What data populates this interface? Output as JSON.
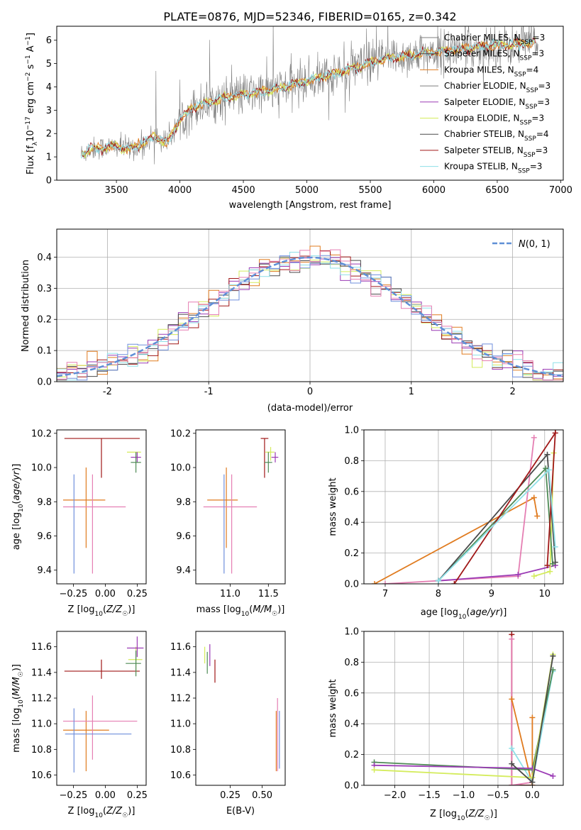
{
  "title": "PLATE=0876, MJD=52346, FIBERID=0165, z=0.342",
  "colors": {
    "chabrier_miles": "#7f7f7f",
    "salpeter_miles": "#4d4d4d",
    "kroupa_miles": "#e07b1f",
    "chabrier_elodie": "#7f7f7f",
    "salpeter_elodie": "#9b3bb5",
    "kroupa_elodie": "#d4ec5c",
    "chabrier_stelib": "#4a4a4a",
    "salpeter_stelib": "#a01818",
    "kroupa_stelib": "#8ee0e8",
    "extra_blue": "#6f8fdc",
    "extra_pink": "#e57fb3",
    "extra_green": "#4e8a55",
    "gaussian": "#5f8fd6"
  },
  "chart_data": [
    {
      "type": "line",
      "title": "PLATE=0876, MJD=52346, FIBERID=0165, z=0.342",
      "xlabel": "wavelength [Angstrom, rest frame]",
      "ylabel": "Flux [f_λ 10^-17 erg cm^-2 s^-1 A^-1]",
      "xlim": [
        3030,
        7020
      ],
      "ylim": [
        0,
        6.6
      ],
      "xticks": [
        3500,
        4000,
        4500,
        5000,
        5500,
        6000,
        6500,
        7000
      ],
      "yticks": [
        0,
        1,
        2,
        3,
        4,
        5,
        6
      ],
      "grid": false,
      "legend_position": "upper right",
      "legend": [
        {
          "base": "Chabrier MILES, N",
          "sub": "SSP",
          "tail": "=3"
        },
        {
          "base": "Salpeter MILES, N",
          "sub": "SSP",
          "tail": "=3"
        },
        {
          "base": "Kroupa MILES, N",
          "sub": "SSP",
          "tail": "=4"
        },
        {
          "base": "Chabrier ELODIE, N",
          "sub": "SSP",
          "tail": "=3"
        },
        {
          "base": "Salpeter ELODIE, N",
          "sub": "SSP",
          "tail": "=3"
        },
        {
          "base": "Kroupa ELODIE, N",
          "sub": "SSP",
          "tail": "=3"
        },
        {
          "base": "Chabrier STELIB, N",
          "sub": "SSP",
          "tail": "=4"
        },
        {
          "base": "Salpeter STELIB, N",
          "sub": "SSP",
          "tail": "=3"
        },
        {
          "base": "Kroupa STELIB, N",
          "sub": "SSP",
          "tail": "=3"
        }
      ],
      "continuum_anchors": {
        "x": [
          3220,
          3300,
          3500,
          3600,
          3700,
          3800,
          3900,
          4000,
          4100,
          4200,
          4400,
          4600,
          4800,
          5000,
          5200,
          5400,
          5600,
          5800,
          6000,
          6200,
          6400,
          6600,
          6800
        ],
        "y": [
          1.1,
          1.35,
          1.45,
          1.35,
          1.55,
          1.9,
          1.6,
          2.6,
          3.1,
          3.3,
          3.6,
          3.75,
          3.95,
          4.25,
          4.55,
          4.85,
          5.2,
          5.35,
          5.5,
          5.6,
          5.75,
          5.8,
          5.9
        ]
      }
    },
    {
      "type": "step",
      "xlabel": "(data-model)/error",
      "ylabel": "Normed distribution",
      "xlim": [
        -2.5,
        2.5
      ],
      "ylim": [
        0,
        0.49
      ],
      "xticks": [
        -2,
        -1,
        0,
        1,
        2
      ],
      "yticks": [
        0.0,
        0.1,
        0.2,
        0.3,
        0.4
      ],
      "grid": true,
      "legend_position": "upper right",
      "legend": [
        {
          "label": "N(0, 1)",
          "style": "dashed"
        }
      ],
      "bin_width": 0.1
    },
    {
      "type": "errorbar",
      "xlabel": "Z [log10(Z/Z☉)]",
      "ylabel": "age [log10(age/yr)]",
      "xlim": [
        -0.38,
        0.32
      ],
      "ylim": [
        9.32,
        10.22
      ],
      "xticks": [
        -0.25,
        0.0,
        0.25
      ],
      "xticklabels": [
        "−0.25",
        "0.00",
        "0.25"
      ],
      "yticks": [
        9.4,
        9.6,
        9.8,
        10.0,
        10.2
      ],
      "points": [
        {
          "series": "salpeter_stelib",
          "x": -0.03,
          "xerr": [
            0.29,
            0.3
          ],
          "y": 10.17,
          "yerr": [
            0.23,
            0.0
          ]
        },
        {
          "series": "kroupa_miles",
          "x": -0.15,
          "xerr": [
            0.18,
            0.15
          ],
          "y": 9.81,
          "yerr": [
            0.28,
            0.19
          ]
        },
        {
          "series": "extra_pink",
          "x": -0.1,
          "xerr": [
            0.23,
            0.26
          ],
          "y": 9.77,
          "yerr": [
            0.39,
            0.19
          ]
        },
        {
          "series": "extra_blue",
          "x": -0.245,
          "xerr": [
            0.0,
            0.0
          ],
          "y": 9.7,
          "yerr": [
            0.32,
            0.26
          ]
        },
        {
          "series": "kroupa_elodie",
          "x": 0.24,
          "xerr": [
            0.07,
            0.04
          ],
          "y": 10.09,
          "yerr": [
            0.04,
            0.0
          ]
        },
        {
          "series": "salpeter_elodie",
          "x": 0.25,
          "xerr": [
            0.05,
            0.03
          ],
          "y": 10.06,
          "yerr": [
            0.03,
            0.03
          ]
        },
        {
          "series": "extra_green",
          "x": 0.24,
          "xerr": [
            0.04,
            0.04
          ],
          "y": 10.03,
          "yerr": [
            0.06,
            0.06
          ]
        }
      ]
    },
    {
      "type": "errorbar",
      "xlabel": "mass [log10(M/M☉)]",
      "ylabel": "",
      "xlim": [
        10.55,
        11.72
      ],
      "ylim": [
        9.32,
        10.22
      ],
      "xticks": [
        11.0,
        11.5
      ],
      "xticklabels": [
        "11.0",
        "11.5"
      ],
      "yticks": [
        9.4,
        9.6,
        9.8,
        10.0,
        10.2
      ],
      "points": [
        {
          "series": "salpeter_stelib",
          "x": 11.45,
          "xerr": [
            0.05,
            0.05
          ],
          "y": 10.17,
          "yerr": [
            0.23,
            0.0
          ]
        },
        {
          "series": "kroupa_miles",
          "x": 10.95,
          "xerr": [
            0.25,
            0.15
          ],
          "y": 9.81,
          "yerr": [
            0.28,
            0.19
          ]
        },
        {
          "series": "extra_pink",
          "x": 11.02,
          "xerr": [
            0.37,
            0.33
          ],
          "y": 9.77,
          "yerr": [
            0.39,
            0.19
          ]
        },
        {
          "series": "extra_blue",
          "x": 10.92,
          "xerr": [
            0.0,
            0.0
          ],
          "y": 9.7,
          "yerr": [
            0.32,
            0.26
          ]
        },
        {
          "series": "kroupa_elodie",
          "x": 11.53,
          "xerr": [
            0.07,
            0.05
          ],
          "y": 10.09,
          "yerr": [
            0.05,
            0.03
          ]
        },
        {
          "series": "salpeter_elodie",
          "x": 11.59,
          "xerr": [
            0.05,
            0.04
          ],
          "y": 10.06,
          "yerr": [
            0.03,
            0.03
          ]
        },
        {
          "series": "extra_green",
          "x": 11.5,
          "xerr": [
            0.05,
            0.05
          ],
          "y": 10.03,
          "yerr": [
            0.06,
            0.06
          ]
        }
      ]
    },
    {
      "type": "line",
      "xlabel": "age [log10(age/yr)]",
      "ylabel": "mass weight",
      "xlim": [
        6.6,
        10.35
      ],
      "ylim": [
        0,
        1
      ],
      "xticks": [
        7,
        8,
        9,
        10
      ],
      "yticks": [
        0.0,
        0.2,
        0.4,
        0.6,
        0.8,
        1.0
      ],
      "grid": true,
      "series": [
        {
          "key": "kroupa_miles",
          "x": [
            6.8,
            9.8,
            9.86
          ],
          "y": [
            0.0,
            0.56,
            0.44
          ]
        },
        {
          "key": "extra_pink",
          "x": [
            7.0,
            9.5,
            9.8
          ],
          "y": [
            0.0,
            0.05,
            0.95
          ]
        },
        {
          "key": "salpeter_elodie",
          "x": [
            8.0,
            9.5,
            10.2
          ],
          "y": [
            0.02,
            0.06,
            0.12
          ]
        },
        {
          "key": "kroupa_elodie",
          "x": [
            9.8,
            10.1,
            10.17
          ],
          "y": [
            0.05,
            0.08,
            0.85
          ]
        },
        {
          "key": "extra_green",
          "x": [
            8.0,
            10.02,
            10.15
          ],
          "y": [
            0.02,
            0.75,
            0.13
          ]
        },
        {
          "key": "chabrier_stelib",
          "x": [
            8.0,
            10.05,
            10.2
          ],
          "y": [
            0.02,
            0.84,
            0.14
          ]
        },
        {
          "key": "salpeter_stelib",
          "x": [
            8.3,
            10.2,
            10.05
          ],
          "y": [
            0.0,
            0.98,
            0.12
          ]
        },
        {
          "key": "kroupa_stelib",
          "x": [
            8.0,
            10.08,
            10.2
          ],
          "y": [
            0.02,
            0.74,
            0.24
          ]
        }
      ]
    },
    {
      "type": "errorbar",
      "xlabel": "Z [log10(Z/Z☉)]",
      "ylabel": "mass [log10(M/M☉)]",
      "xlim": [
        -0.38,
        0.32
      ],
      "ylim": [
        10.52,
        11.72
      ],
      "xticks": [
        -0.25,
        0.0,
        0.25
      ],
      "xticklabels": [
        "−0.25",
        "0.00",
        "0.25"
      ],
      "yticks": [
        10.6,
        10.8,
        11.0,
        11.2,
        11.4,
        11.6
      ],
      "points": [
        {
          "series": "salpeter_stelib",
          "x": -0.03,
          "xerr": [
            0.29,
            0.3
          ],
          "y": 11.41,
          "yerr": [
            0.06,
            0.09
          ]
        },
        {
          "series": "kroupa_miles",
          "x": -0.15,
          "xerr": [
            0.18,
            0.18
          ],
          "y": 10.95,
          "yerr": [
            0.32,
            0.15
          ]
        },
        {
          "series": "extra_pink",
          "x": -0.1,
          "xerr": [
            0.23,
            0.35
          ],
          "y": 11.02,
          "yerr": [
            0.3,
            0.2
          ]
        },
        {
          "series": "extra_blue",
          "x": -0.245,
          "xerr": [
            0.07,
            0.45
          ],
          "y": 10.92,
          "yerr": [
            0.3,
            0.2
          ]
        },
        {
          "series": "kroupa_elodie",
          "x": 0.24,
          "xerr": [
            0.06,
            0.05
          ],
          "y": 11.5,
          "yerr": [
            0.1,
            0.1
          ]
        },
        {
          "series": "salpeter_elodie",
          "x": 0.25,
          "xerr": [
            0.08,
            0.05
          ],
          "y": 11.59,
          "yerr": [
            0.07,
            0.09
          ]
        },
        {
          "series": "extra_green",
          "x": 0.24,
          "xerr": [
            0.08,
            0.04
          ],
          "y": 11.47,
          "yerr": [
            0.1,
            0.1
          ]
        }
      ]
    },
    {
      "type": "errorbar",
      "xlabel": "E(B-V)",
      "ylabel": "",
      "xlim": [
        -0.02,
        0.68
      ],
      "ylim": [
        10.52,
        11.72
      ],
      "xticks": [
        0.25,
        0.5
      ],
      "xticklabels": [
        "0.25",
        "0.50"
      ],
      "yticks": [
        10.6,
        10.8,
        11.0,
        11.2,
        11.4,
        11.6
      ],
      "points": [
        {
          "series": "salpeter_stelib",
          "x": 0.13,
          "xerr": [
            0.0,
            0.0
          ],
          "y": 11.41,
          "yerr": [
            0.09,
            0.09
          ]
        },
        {
          "series": "kroupa_elodie",
          "x": 0.05,
          "xerr": [
            0.0,
            0.0
          ],
          "y": 11.55,
          "yerr": [
            0.08,
            0.05
          ]
        },
        {
          "series": "extra_green",
          "x": 0.07,
          "xerr": [
            0.0,
            0.0
          ],
          "y": 11.47,
          "yerr": [
            0.08,
            0.09
          ]
        },
        {
          "series": "salpeter_elodie",
          "x": 0.09,
          "xerr": [
            0.0,
            0.0
          ],
          "y": 11.55,
          "yerr": [
            0.1,
            0.07
          ]
        },
        {
          "series": "kroupa_miles",
          "x": 0.61,
          "xerr": [
            0.0,
            0.0
          ],
          "y": 10.85,
          "yerr": [
            0.22,
            0.25
          ]
        },
        {
          "series": "extra_pink",
          "x": 0.62,
          "xerr": [
            0.0,
            0.0
          ],
          "y": 10.95,
          "yerr": [
            0.32,
            0.25
          ]
        },
        {
          "series": "extra_blue",
          "x": 0.635,
          "xerr": [
            0.0,
            0.0
          ],
          "y": 10.85,
          "yerr": [
            0.2,
            0.25
          ]
        }
      ]
    },
    {
      "type": "line",
      "xlabel": "Z [log10(Z/Z☉)]",
      "ylabel": "mass weight",
      "xlim": [
        -2.45,
        0.45
      ],
      "ylim": [
        0,
        1
      ],
      "xticks": [
        -2.0,
        -1.5,
        -1.0,
        -0.5,
        0.0
      ],
      "xticklabels": [
        "−2.0",
        "−1.5",
        "−1.0",
        "−0.5",
        "0.0"
      ],
      "yticks": [
        0.0,
        0.2,
        0.4,
        0.6,
        0.8,
        1.0
      ],
      "grid": true,
      "series": [
        {
          "key": "salpeter_stelib",
          "x": [
            -0.3,
            -0.3,
            0.0
          ],
          "y": [
            0.98,
            0.0,
            0.0
          ]
        },
        {
          "key": "extra_pink",
          "x": [
            -0.3,
            -0.3,
            0.0
          ],
          "y": [
            0.95,
            0.0,
            0.02
          ]
        },
        {
          "key": "kroupa_miles",
          "x": [
            -0.3,
            0.0,
            0.0
          ],
          "y": [
            0.56,
            0.0,
            0.44
          ]
        },
        {
          "key": "kroupa_stelib",
          "x": [
            -0.3,
            0.0,
            0.3
          ],
          "y": [
            0.24,
            0.02,
            0.74
          ]
        },
        {
          "key": "extra_green",
          "x": [
            -2.3,
            0.0,
            0.3
          ],
          "y": [
            0.15,
            0.1,
            0.75
          ]
        },
        {
          "key": "salpeter_elodie",
          "x": [
            -2.3,
            0.0,
            0.3
          ],
          "y": [
            0.13,
            0.11,
            0.06
          ]
        },
        {
          "key": "kroupa_elodie",
          "x": [
            -2.3,
            0.0,
            0.3
          ],
          "y": [
            0.1,
            0.05,
            0.85
          ]
        },
        {
          "key": "chabrier_stelib",
          "x": [
            -0.3,
            0.0,
            0.3
          ],
          "y": [
            0.14,
            0.02,
            0.84
          ]
        }
      ]
    }
  ]
}
